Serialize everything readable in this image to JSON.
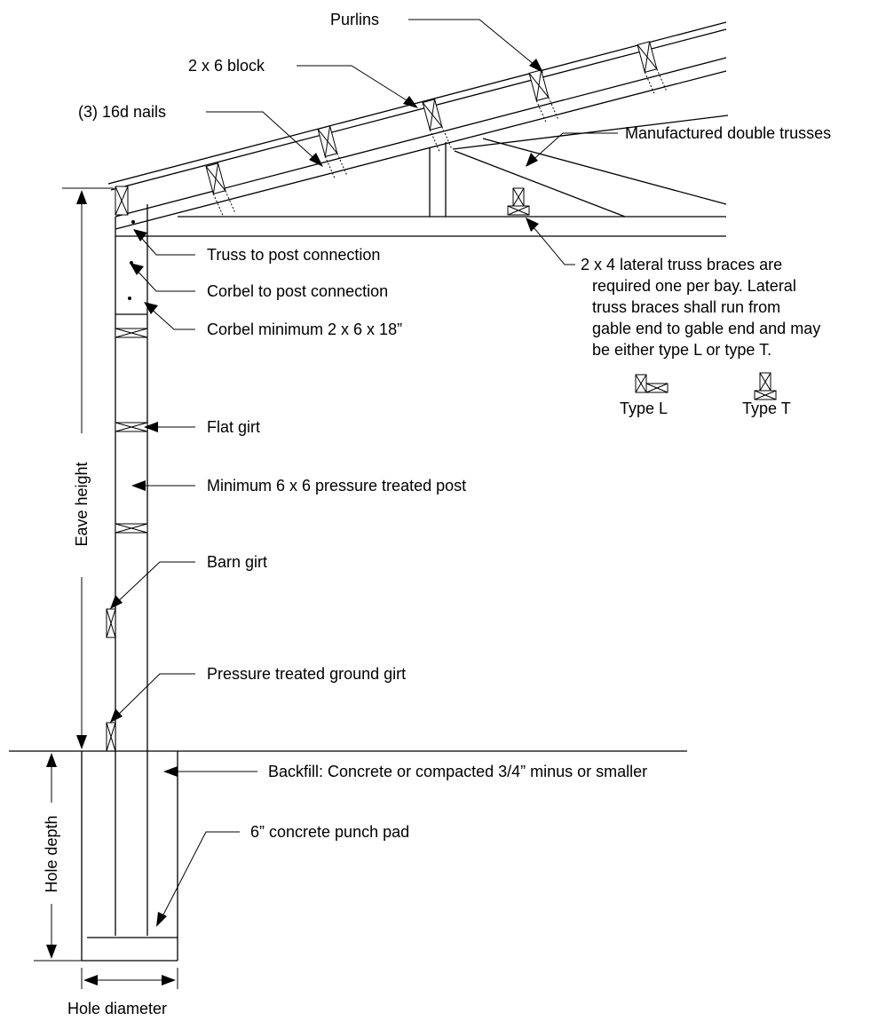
{
  "labels": {
    "purlins": "Purlins",
    "block": "2 x 6 block",
    "nails": "(3) 16d nails",
    "trusses": "Manufactured double trusses",
    "truss_post": "Truss to post connection",
    "corbel_post": "Corbel to post connection",
    "corbel_min": "Corbel minimum 2 x 6 x 18”",
    "lateral": [
      "2 x 4 lateral truss braces are",
      "required one per bay. Lateral",
      "truss braces shall run from",
      "gable end to gable end and may",
      "be either type L or type T."
    ],
    "type_l": "Type L",
    "type_t": "Type T",
    "flat_girt": "Flat girt",
    "post": "Minimum 6 x 6 pressure treated post",
    "barn_girt": "Barn girt",
    "ground_girt": "Pressure treated ground girt",
    "backfill": "Backfill:  Concrete or compacted 3/4” minus or smaller",
    "punch_pad": "6” concrete punch pad",
    "eave_height": "Eave height",
    "hole_depth": "Hole depth",
    "hole_diameter": "Hole diameter"
  }
}
